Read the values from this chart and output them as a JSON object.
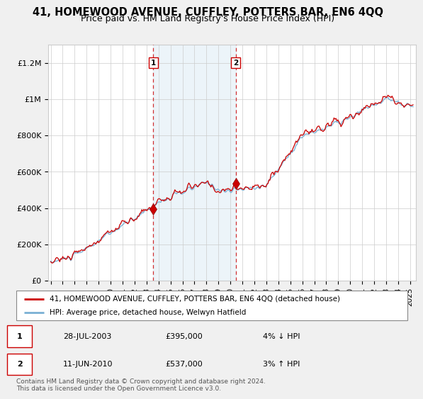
{
  "title": "41, HOMEWOOD AVENUE, CUFFLEY, POTTERS BAR, EN6 4QQ",
  "subtitle": "Price paid vs. HM Land Registry's House Price Index (HPI)",
  "ylabel_ticks": [
    "£0",
    "£200K",
    "£400K",
    "£600K",
    "£800K",
    "£1M",
    "£1.2M"
  ],
  "ytick_values": [
    0,
    200000,
    400000,
    600000,
    800000,
    1000000,
    1200000
  ],
  "ylim": [
    0,
    1300000
  ],
  "xlim_start": 1994.8,
  "xlim_end": 2025.5,
  "xticks": [
    1995,
    1996,
    1997,
    1998,
    1999,
    2000,
    2001,
    2002,
    2003,
    2004,
    2005,
    2006,
    2007,
    2008,
    2009,
    2010,
    2011,
    2012,
    2013,
    2014,
    2015,
    2016,
    2017,
    2018,
    2019,
    2020,
    2021,
    2022,
    2023,
    2024,
    2025
  ],
  "sale1_x": 2003.57,
  "sale1_y": 395000,
  "sale1_label": "1",
  "sale2_x": 2010.44,
  "sale2_y": 537000,
  "sale2_label": "2",
  "line_color_property": "#cc0000",
  "line_color_hpi": "#7ab0d4",
  "fill_color": "#daeaf5",
  "vline_color": "#cc0000",
  "background_color": "#f0f0f0",
  "plot_bg_color": "#ffffff",
  "legend_line1": "41, HOMEWOOD AVENUE, CUFFLEY, POTTERS BAR, EN6 4QQ (detached house)",
  "legend_line2": "HPI: Average price, detached house, Welwyn Hatfield",
  "table_row1": [
    "1",
    "28-JUL-2003",
    "£395,000",
    "4% ↓ HPI"
  ],
  "table_row2": [
    "2",
    "11-JUN-2010",
    "£537,000",
    "3% ↑ HPI"
  ],
  "footer": "Contains HM Land Registry data © Crown copyright and database right 2024.\nThis data is licensed under the Open Government Licence v3.0.",
  "title_fontsize": 10.5,
  "subtitle_fontsize": 9
}
